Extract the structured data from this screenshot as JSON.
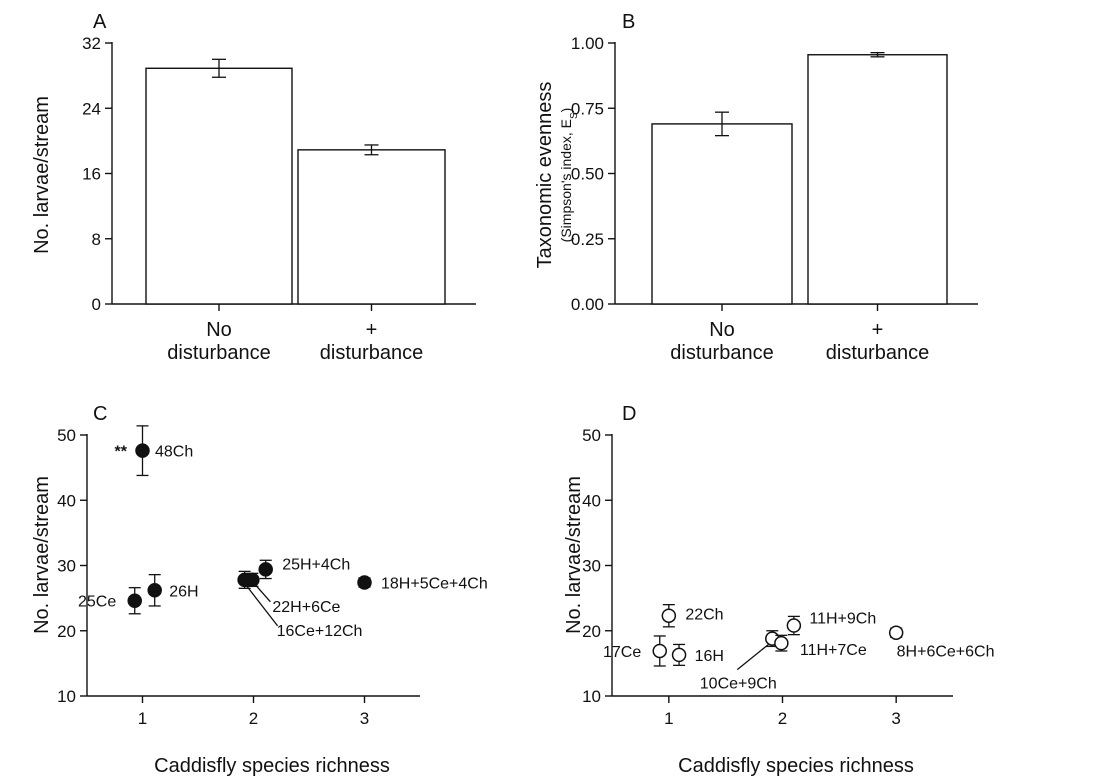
{
  "chart_data": [
    {
      "panel": "A",
      "type": "bar",
      "categories": [
        [
          "No",
          "disturbance"
        ],
        [
          "+",
          "disturbance"
        ]
      ],
      "values": [
        28.9,
        18.9
      ],
      "error": [
        1.1,
        0.6
      ],
      "ylabel": "No. larvae/stream",
      "ylim": [
        0,
        32
      ],
      "yticks": [
        0,
        8,
        16,
        24,
        32
      ],
      "grid": false
    },
    {
      "panel": "B",
      "type": "bar",
      "categories": [
        [
          "No",
          "disturbance"
        ],
        [
          "+",
          "disturbance"
        ]
      ],
      "values": [
        0.69,
        0.955
      ],
      "error": [
        0.045,
        0.008
      ],
      "ylabel": "Taxonomic evenness",
      "ylabel_sub": "(Simpson's index, E",
      "ylabel_sub_subscript": "S",
      "ylabel_sub_close": ")",
      "ylim": [
        0,
        1
      ],
      "yticks": [
        "0.00",
        "0.25",
        "0.50",
        "0.75",
        "1.00"
      ],
      "grid": false
    },
    {
      "panel": "C",
      "type": "scatter",
      "marker": "filled",
      "xlabel": "Caddisfly species richness",
      "ylabel": "No. larvae/stream",
      "xlim": [
        0.5,
        3.5
      ],
      "ylim": [
        10,
        50
      ],
      "xticks": [
        1,
        2,
        3
      ],
      "yticks": [
        10,
        20,
        30,
        40,
        50
      ],
      "grid": false,
      "points": [
        {
          "label": "48Ch",
          "x": 1.0,
          "y": 47.6,
          "err": 3.8,
          "annotation": "**"
        },
        {
          "label": "25Ce",
          "x": 0.93,
          "y": 24.6,
          "err": 2.0
        },
        {
          "label": "26H",
          "x": 1.11,
          "y": 26.2,
          "err": 2.4
        },
        {
          "label": "16Ce+12Ch",
          "x": 1.92,
          "y": 27.8,
          "err": 1.3
        },
        {
          "label": "22H+6Ce",
          "x": 1.99,
          "y": 27.8,
          "err": 1.0
        },
        {
          "label": "25H+4Ch",
          "x": 2.11,
          "y": 29.4,
          "err": 1.4
        },
        {
          "label": "18H+5Ce+4Ch",
          "x": 3.0,
          "y": 27.4,
          "err": 0.7
        }
      ]
    },
    {
      "panel": "D",
      "type": "scatter",
      "marker": "open",
      "xlabel": "Caddisfly species richness",
      "ylabel": "No. larvae/stream",
      "xlim": [
        0.5,
        3.5
      ],
      "ylim": [
        10,
        50
      ],
      "xticks": [
        1,
        2,
        3
      ],
      "yticks": [
        10,
        20,
        30,
        40,
        50
      ],
      "grid": false,
      "points": [
        {
          "label": "22Ch",
          "x": 1.0,
          "y": 22.3,
          "err": 1.7
        },
        {
          "label": "17Ce",
          "x": 0.92,
          "y": 16.9,
          "err": 2.3
        },
        {
          "label": "16H",
          "x": 1.09,
          "y": 16.3,
          "err": 1.6
        },
        {
          "label": "10Ce+9Ch",
          "x": 1.91,
          "y": 18.8,
          "err": 1.2
        },
        {
          "label": "11H+7Ce",
          "x": 1.99,
          "y": 18.1,
          "err": 1.2
        },
        {
          "label": "11H+9Ch",
          "x": 2.1,
          "y": 20.8,
          "err": 1.4
        },
        {
          "label": "8H+6Ce+6Ch",
          "x": 3.0,
          "y": 19.7,
          "err": 0.7
        }
      ]
    }
  ]
}
